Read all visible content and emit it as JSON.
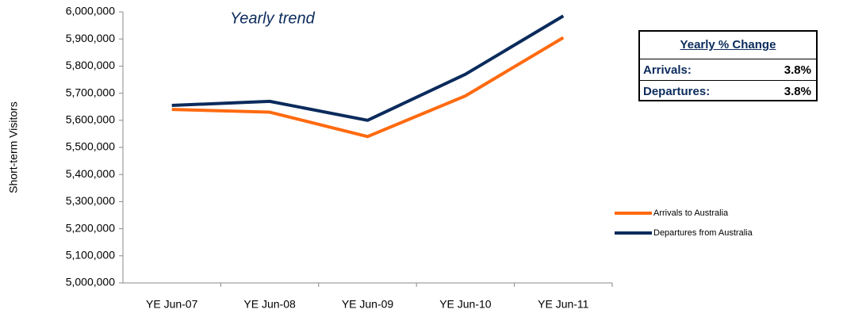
{
  "chart_data": {
    "type": "line",
    "annotation": "Yearly trend",
    "y_label": "Short-term Visitors",
    "categories": [
      "YE Jun-07",
      "YE Jun-08",
      "YE Jun-09",
      "YE Jun-10",
      "YE Jun-11"
    ],
    "series": [
      {
        "name": "Arrivals to Australia",
        "color": "#ff6a10",
        "values": [
          5640000,
          5630000,
          5540000,
          5690000,
          5905000
        ]
      },
      {
        "name": "Departures from Australia",
        "color": "#0b2b5c",
        "values": [
          5655000,
          5670000,
          5600000,
          5770000,
          5985000
        ]
      }
    ],
    "ylim": [
      5000000,
      6000000
    ],
    "yticks": [
      {
        "value": 5000000,
        "label": "5,000,000"
      },
      {
        "value": 5100000,
        "label": "5,100,000"
      },
      {
        "value": 5200000,
        "label": "5,200,000"
      },
      {
        "value": 5300000,
        "label": "5,300,000"
      },
      {
        "value": 5400000,
        "label": "5,400,000"
      },
      {
        "value": 5500000,
        "label": "5,500,000"
      },
      {
        "value": 5600000,
        "label": "5,600,000"
      },
      {
        "value": 5700000,
        "label": "5,700,000"
      },
      {
        "value": 5800000,
        "label": "5,800,000"
      },
      {
        "value": 5900000,
        "label": "5,900,000"
      },
      {
        "value": 6000000,
        "label": "6,000,000"
      }
    ],
    "grid": false,
    "legend": "right",
    "summary_table": {
      "header": "Yearly % Change",
      "rows": [
        [
          "Arrivals:",
          "3.8%"
        ],
        [
          "Departures:",
          "3.8%"
        ]
      ]
    }
  }
}
